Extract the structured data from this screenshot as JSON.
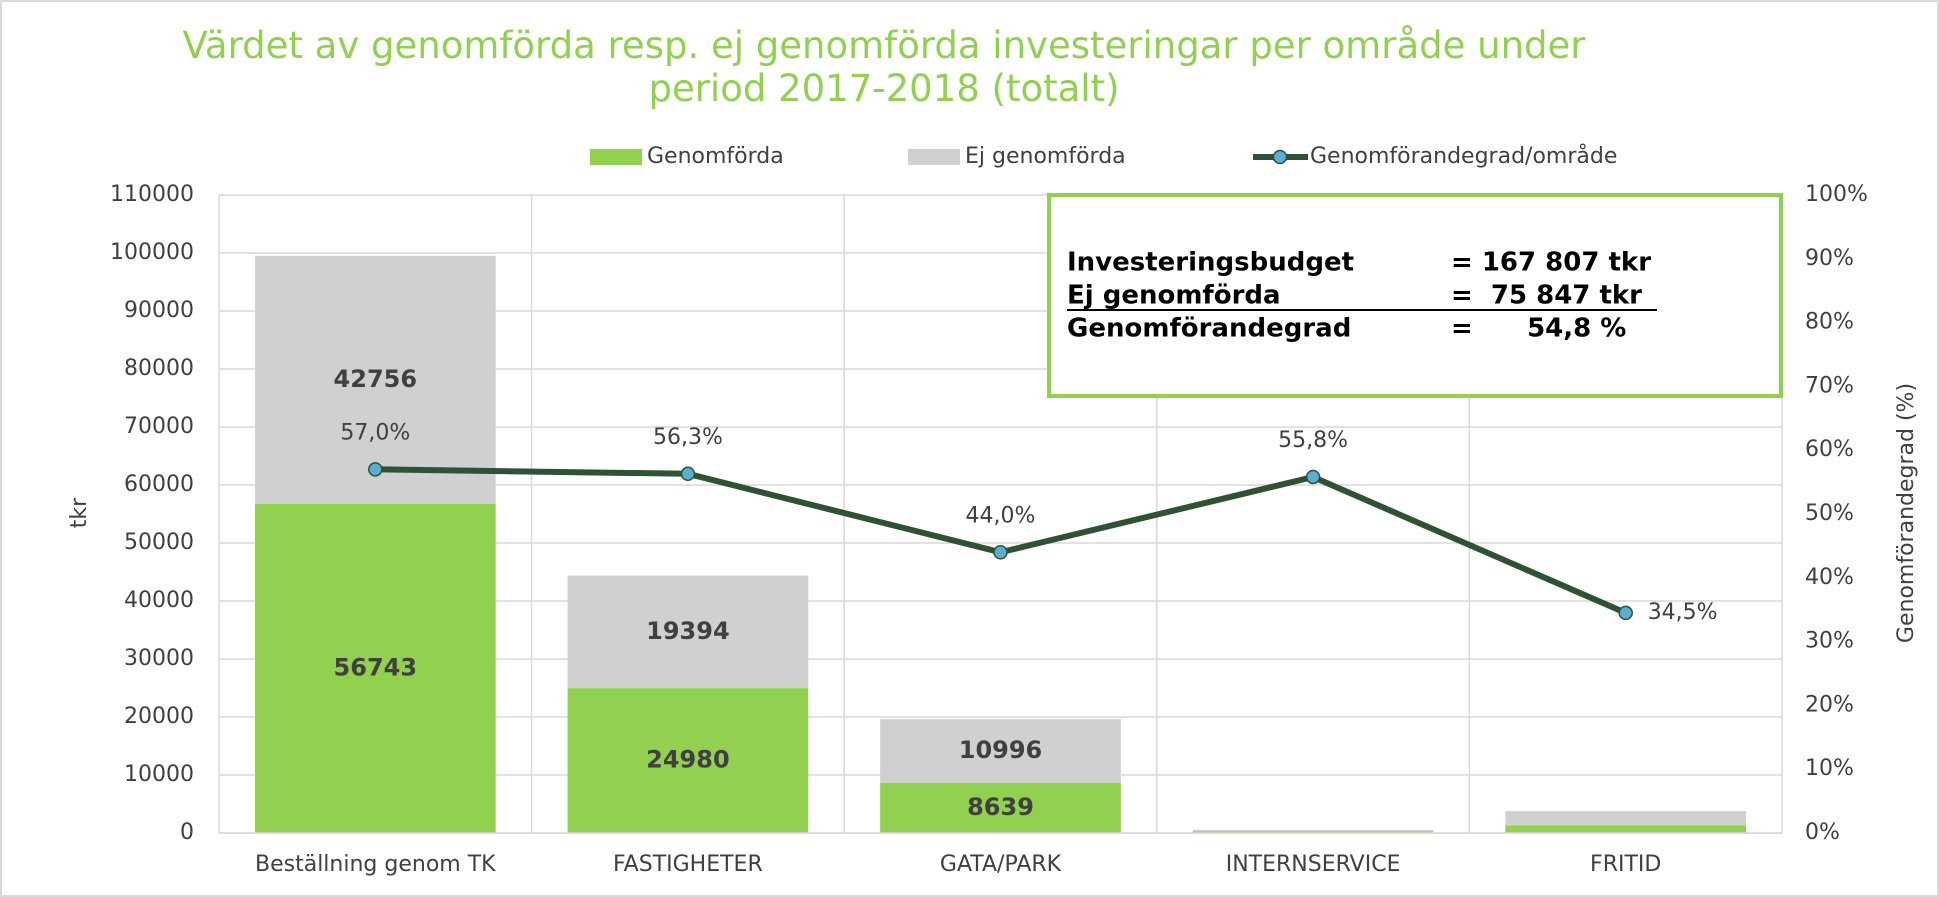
{
  "chart_data": {
    "type": "bar",
    "title": "Värdet av genomförda resp. ej genomförda investeringar per område under period 2017-2018 (totalt)",
    "stacked": true,
    "categories": [
      "Beställning genom TK",
      "FASTIGHETER",
      "GATA/PARK",
      "INTERNSERVICE",
      "FRITID"
    ],
    "series": [
      {
        "name": "Genomförda",
        "color": "#92d050",
        "values": [
          56743,
          24980,
          8639,
          301,
          1297
        ]
      },
      {
        "name": "Ej genomförda",
        "color": "#d0d0d0",
        "values": [
          42756,
          19394,
          10996,
          238,
          2463
        ]
      },
      {
        "name": "Genomförandegrad/område",
        "type": "line",
        "axis": "y2",
        "color": "#2e5233",
        "marker_color": "#5aaed2",
        "values": [
          57.0,
          56.3,
          44.0,
          55.8,
          34.5
        ],
        "value_labels": [
          "57,0%",
          "56,3%",
          "44,0%",
          "55,8%",
          "34,5%"
        ]
      }
    ],
    "ylabel": "tkr",
    "y2label": "Genomförandegrad (%)",
    "ylim": [
      0,
      110000
    ],
    "yticks": [
      0,
      10000,
      20000,
      30000,
      40000,
      50000,
      60000,
      70000,
      80000,
      90000,
      100000,
      110000
    ],
    "y2lim": [
      0,
      100
    ],
    "y2ticks": [
      {
        "value": 0,
        "label": "0%"
      },
      {
        "value": 10,
        "label": "10%"
      },
      {
        "value": 20,
        "label": "20%"
      },
      {
        "value": 30,
        "label": "30%"
      },
      {
        "value": 40,
        "label": "40%"
      },
      {
        "value": 50,
        "label": "50%"
      },
      {
        "value": 60,
        "label": "60%"
      },
      {
        "value": 70,
        "label": "70%"
      },
      {
        "value": 80,
        "label": "80%"
      },
      {
        "value": 90,
        "label": "90%"
      },
      {
        "value": 100,
        "label": "100%"
      }
    ],
    "grid": true,
    "legend": "top",
    "annotation": [
      [
        "Investeringsbudget",
        "= 167 807 tkr"
      ],
      [
        "Ej genomförda",
        "=  75 847 tkr"
      ],
      [
        "Genomförandegrad",
        "=      54,8 %"
      ]
    ]
  }
}
